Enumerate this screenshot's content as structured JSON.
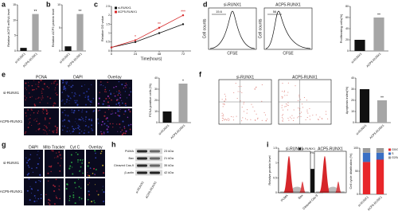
{
  "chart_data": [
    {
      "type": "bar",
      "ylabel": "Relative ACP5 mRNA level",
      "categories": [
        "si-RUNX1",
        "ACP5-RUNX1"
      ],
      "values": [
        1,
        12
      ],
      "colors": [
        "#111111",
        "#a6a6a6"
      ],
      "value_annotations": [
        null,
        "**"
      ],
      "ylim": [
        0,
        15
      ],
      "yticks": [
        0,
        5,
        10,
        15
      ]
    },
    {
      "type": "bar",
      "ylabel": "Relative ACP5 protein level",
      "categories": [
        "si-RUNX1",
        "ACP5-RUNX1"
      ],
      "values": [
        1,
        8
      ],
      "colors": [
        "#111111",
        "#a6a6a6"
      ],
      "value_annotations": [
        null,
        "**"
      ],
      "ylim": [
        0,
        10
      ],
      "yticks": [
        0,
        5,
        10
      ]
    },
    {
      "type": "line",
      "xlabel": "Time(hours)",
      "ylabel": "Relative OD value",
      "x": [
        0,
        24,
        48,
        72
      ],
      "series": [
        {
          "name": "si-RUNX1",
          "color": "#111111",
          "values": [
            0.2,
            0.5,
            1.0,
            1.5
          ]
        },
        {
          "name": "ACP5-RUNX1",
          "color": "#d62728",
          "values": [
            0.2,
            0.6,
            1.3,
            2.0
          ]
        }
      ],
      "point_annotations": [
        null,
        "*",
        "**",
        "***"
      ],
      "xlim": [
        0,
        80
      ],
      "xticks": [
        0,
        24,
        48,
        72
      ],
      "ylim": [
        0,
        2.5
      ],
      "yticks": [
        0,
        0.5,
        1,
        1.5,
        2,
        2.5
      ]
    },
    {
      "type": "bar",
      "ylabel": "Proliferating cells(%)",
      "categories": [
        "si-RUNX1",
        "ACP5-RUNX1"
      ],
      "values": [
        20,
        60
      ],
      "colors": [
        "#111111",
        "#a6a6a6"
      ],
      "value_annotations": [
        null,
        "**"
      ],
      "ylim": [
        0,
        80
      ],
      "yticks": [
        0,
        20,
        40,
        60,
        80
      ]
    },
    {
      "type": "bar",
      "ylabel": "PCNA positive cells (%)",
      "categories": [
        "si-RUNX1",
        "ACP5-RUNX1"
      ],
      "values": [
        10,
        35
      ],
      "colors": [
        "#111111",
        "#a6a6a6"
      ],
      "value_annotations": [
        null,
        "*"
      ],
      "ylim": [
        0,
        40
      ],
      "yticks": [
        0,
        10,
        20,
        30,
        40
      ]
    },
    {
      "type": "bar",
      "ylabel": "Apoptosis index(%)",
      "categories": [
        "si-RUNX1",
        "ACP5-RUNX1"
      ],
      "values": [
        30,
        20
      ],
      "colors": [
        "#111111",
        "#a6a6a6"
      ],
      "value_annotations": [
        null,
        "**"
      ],
      "ylim": [
        0,
        40
      ],
      "yticks": [
        0,
        10,
        20,
        30,
        40
      ]
    },
    {
      "type": "bar",
      "ylabel": "Relative protein level",
      "categories": [
        "PUMA",
        "Bax",
        "Cleaved Cas-9"
      ],
      "series": [
        {
          "name": "si-RUNX1",
          "color": "#111111",
          "values": [
            1.0,
            0.9,
            0.8
          ]
        },
        {
          "name": "ACP5-RUNX1",
          "color": "#a6a6a6",
          "values": [
            0.4,
            0.3,
            0.3
          ],
          "annotations": [
            "*",
            "*",
            "**"
          ]
        }
      ],
      "ylim": [
        0,
        1.5
      ],
      "yticks": [
        0,
        0.5,
        1,
        1.5
      ]
    },
    {
      "type": "bar",
      "stacked": true,
      "ylabel": "Cell cycle distribution (%)",
      "categories": [
        "si-RUNX1",
        "ACP5-RUNX1"
      ],
      "series": [
        {
          "name": "G0/G1",
          "color": "#e8262a",
          "values": [
            70,
            75
          ]
        },
        {
          "name": "S",
          "color": "#3a6fc4",
          "values": [
            20,
            15
          ]
        },
        {
          "name": "G2/M",
          "color": "#9a9a9a",
          "values": [
            10,
            10
          ]
        }
      ],
      "ylim": [
        0,
        100
      ],
      "yticks": [
        0,
        50,
        100
      ]
    }
  ],
  "figure": {
    "panel_labels": [
      "a",
      "b",
      "c",
      "d",
      "e",
      "f",
      "g",
      "h",
      "i"
    ],
    "d_flow": {
      "groups": [
        "si-RUNX1",
        "ACP5-RUNX1"
      ],
      "xlabel": "CFSE",
      "ylabel": "Cell counts",
      "gate_values": [
        "15.6",
        "56"
      ]
    },
    "e_staining": {
      "columns": [
        "PCNA",
        "DAPI",
        "Overlay"
      ],
      "rows": [
        "si-RUNX1",
        "ACP5-RUNX1"
      ]
    },
    "f_flow": {
      "groups": [
        "si-RUNX1",
        "ACP5-RUNX1"
      ]
    },
    "g_staining": {
      "columns": [
        "DAPI",
        "Mito Tracker",
        "Cyt C",
        "Overlay"
      ],
      "rows": [
        "si-RUNX1",
        "ACP5-RUNX1"
      ]
    },
    "h_blot": {
      "bands": [
        "PUMA",
        "Bax",
        "Cleaved Cas-9",
        "β-actin"
      ],
      "sizes": [
        "23 kDa",
        "21 kDa",
        "35 kDa",
        "42 kDa"
      ],
      "lanes": [
        "si-RUNX1",
        "ACP5-RUNX1"
      ]
    },
    "i_histograms": {
      "groups": [
        "si-RUNX1",
        "ACP5-RUNX1"
      ]
    }
  }
}
